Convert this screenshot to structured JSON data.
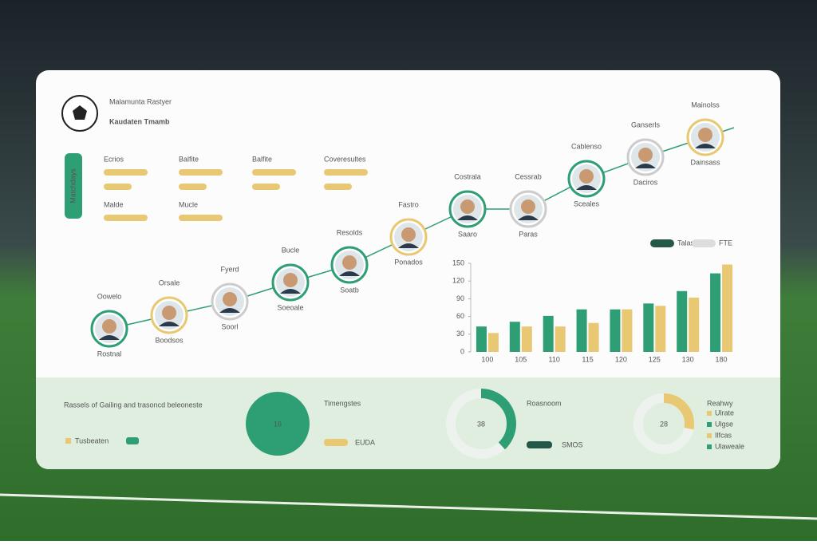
{
  "header": {
    "subtitle": "Malamunta Rastyer",
    "title": "Kaudaten Tmamb"
  },
  "side_tab": "Matchdays",
  "stats": [
    {
      "label": "Ecrios"
    },
    {
      "label": "Balfite"
    },
    {
      "label": "Balfite"
    },
    {
      "label": "Coveresultes"
    },
    {
      "label": "Malde"
    },
    {
      "label": "Mucle"
    }
  ],
  "players": [
    {
      "name": "Oowelo",
      "detail": "Rostnal"
    },
    {
      "name": "Orsale",
      "detail": "Boodsos"
    },
    {
      "name": "Fyerd",
      "detail": "Soorl"
    },
    {
      "name": "Bucle",
      "detail": "Soeoale"
    },
    {
      "name": "Resolds",
      "detail": "Soatb"
    },
    {
      "name": "Fastro",
      "detail": "Ponados"
    },
    {
      "name": "Costrala",
      "detail": "Saaro"
    },
    {
      "name": "Cessrab",
      "detail": "Paras"
    },
    {
      "name": "Cablenso",
      "detail": "Sceales"
    },
    {
      "name": "Ganserls",
      "detail": "Daciros"
    },
    {
      "name": "Mainolss",
      "detail": "Dainsass"
    }
  ],
  "chart_data": {
    "type": "bar",
    "categories": [
      "100",
      "105",
      "110",
      "115",
      "120",
      "125",
      "130",
      "180"
    ],
    "series": [
      {
        "name": "Talas",
        "color": "#2e9e74",
        "values": [
          43,
          51,
          61,
          72,
          72,
          82,
          103,
          133
        ]
      },
      {
        "name": "FTE",
        "color": "#e9c873",
        "values": [
          32,
          43,
          43,
          49,
          72,
          78,
          92,
          148
        ]
      }
    ],
    "ylim": [
      0,
      150
    ],
    "yticks": [
      0,
      30,
      60,
      90,
      120,
      150
    ]
  },
  "summary": {
    "text": "Rassels of Gailing and trasoncd beleoneste",
    "legend": "Tusbeaten",
    "big": {
      "value": 16,
      "label": "Timengstes",
      "sub": "EUDA"
    },
    "donut1": {
      "value": 38,
      "label": "Roasnoom",
      "sub": "SMOS"
    },
    "donut2": {
      "value": 28,
      "label": "Reahwy",
      "items": [
        "Ulrate",
        "Ulgse",
        "Ilfcas",
        "Ulaweale"
      ]
    }
  }
}
